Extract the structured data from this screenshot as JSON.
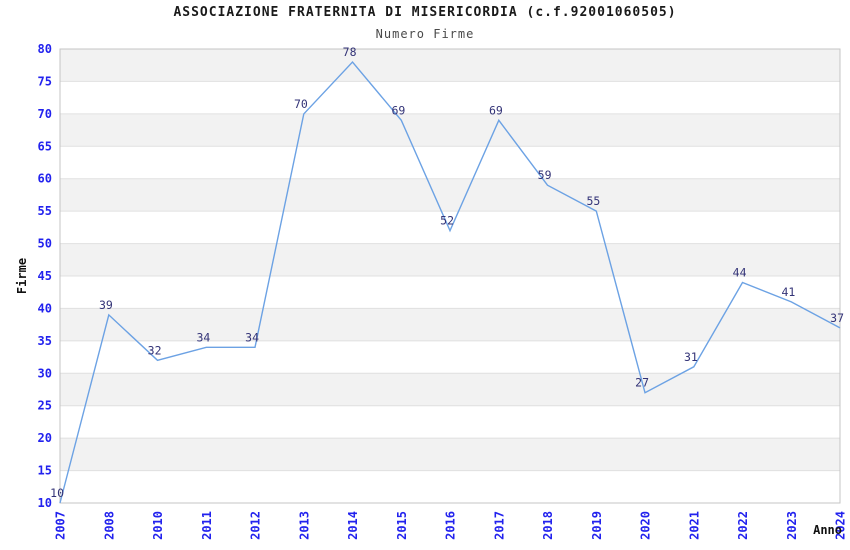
{
  "header": {
    "title": "ASSOCIAZIONE FRATERNITA DI MISERICORDIA (c.f.92001060505)",
    "subtitle": "Numero Firme"
  },
  "chart_data": {
    "type": "line",
    "title": "ASSOCIAZIONE FRATERNITA DI MISERICORDIA (c.f.92001060505)",
    "subtitle": "Numero Firme",
    "xlabel": "Anno",
    "ylabel": "Firme",
    "categories": [
      "2007",
      "2008",
      "2010",
      "2011",
      "2012",
      "2013",
      "2014",
      "2015",
      "2016",
      "2017",
      "2018",
      "2019",
      "2020",
      "2021",
      "2022",
      "2023",
      "2024"
    ],
    "values": [
      10,
      39,
      32,
      34,
      34,
      70,
      78,
      69,
      52,
      69,
      59,
      55,
      27,
      31,
      44,
      41,
      37
    ],
    "ylim": [
      10,
      80
    ],
    "ytick_step": 5,
    "yticks": [
      10,
      15,
      20,
      25,
      30,
      35,
      40,
      45,
      50,
      55,
      60,
      65,
      70,
      75,
      80
    ],
    "grid": "horizontal-bands",
    "legend": "none",
    "point_labels_visible": true,
    "colors": {
      "line": "#6ca2e4",
      "tick_label": "#2222ee",
      "data_label": "#333377",
      "band": "#f2f2f2",
      "gridline": "#e0e0e0",
      "plot_border": "#c4c4c4",
      "title": "#1a1a1a",
      "subtitle": "#4a4a4a",
      "axis_title": "#111111"
    }
  }
}
